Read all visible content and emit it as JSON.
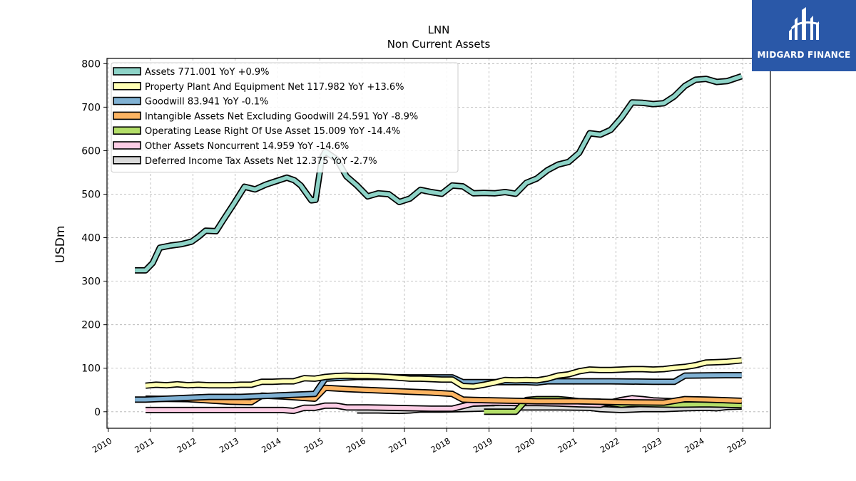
{
  "brand": {
    "name": "MIDGARD FINANCE",
    "color": "#2a58a8"
  },
  "chart_data": {
    "type": "line",
    "title": "LNN",
    "subtitle": "Non Current  Assets",
    "ylabel": "USDm",
    "xlabel": "",
    "xlim": [
      2009.97,
      2025.65
    ],
    "ylim": [
      -38,
      812
    ],
    "yticks": [
      0,
      100,
      200,
      300,
      400,
      500,
      600,
      700,
      800
    ],
    "xticks": [
      2010,
      2011,
      2012,
      2013,
      2014,
      2015,
      2016,
      2017,
      2018,
      2019,
      2020,
      2021,
      2022,
      2023,
      2024,
      2025
    ],
    "grid": true,
    "legend_position": "top-left",
    "series": [
      {
        "name": "Assets  771.001 YoY +0.9%",
        "color": "#8dd3c7",
        "points": [
          [
            2010.63,
            325
          ],
          [
            2010.88,
            325
          ],
          [
            2011.05,
            342
          ],
          [
            2011.22,
            377
          ],
          [
            2011.47,
            382
          ],
          [
            2011.72,
            385
          ],
          [
            2011.97,
            391
          ],
          [
            2012.13,
            402
          ],
          [
            2012.3,
            416
          ],
          [
            2012.55,
            415
          ],
          [
            2012.72,
            441
          ],
          [
            2012.97,
            478
          ],
          [
            2013.22,
            517
          ],
          [
            2013.47,
            511
          ],
          [
            2013.72,
            522
          ],
          [
            2013.97,
            530
          ],
          [
            2014.22,
            538
          ],
          [
            2014.4,
            532
          ],
          [
            2014.55,
            520
          ],
          [
            2014.8,
            486
          ],
          [
            2014.9,
            487
          ],
          [
            2015.05,
            583
          ],
          [
            2015.13,
            598
          ],
          [
            2015.4,
            580
          ],
          [
            2015.63,
            541
          ],
          [
            2015.88,
            520
          ],
          [
            2016.13,
            495
          ],
          [
            2016.38,
            502
          ],
          [
            2016.63,
            500
          ],
          [
            2016.88,
            482
          ],
          [
            2017.13,
            490
          ],
          [
            2017.38,
            510
          ],
          [
            2017.63,
            505
          ],
          [
            2017.88,
            501
          ],
          [
            2018.13,
            520
          ],
          [
            2018.38,
            518
          ],
          [
            2018.63,
            502
          ],
          [
            2018.88,
            503
          ],
          [
            2019.13,
            502
          ],
          [
            2019.38,
            505
          ],
          [
            2019.63,
            501
          ],
          [
            2019.88,
            526
          ],
          [
            2020.13,
            536
          ],
          [
            2020.38,
            555
          ],
          [
            2020.63,
            568
          ],
          [
            2020.88,
            574
          ],
          [
            2021.13,
            595
          ],
          [
            2021.38,
            640
          ],
          [
            2021.63,
            637
          ],
          [
            2021.88,
            648
          ],
          [
            2022.13,
            676
          ],
          [
            2022.38,
            711
          ],
          [
            2022.63,
            710
          ],
          [
            2022.88,
            707
          ],
          [
            2023.13,
            709
          ],
          [
            2023.38,
            725
          ],
          [
            2023.63,
            749
          ],
          [
            2023.88,
            763
          ],
          [
            2024.13,
            765
          ],
          [
            2024.38,
            758
          ],
          [
            2024.63,
            760
          ],
          [
            2024.97,
            771
          ]
        ]
      },
      {
        "name": "Property Plant And Equipment Net  117.982 YoY +13.6%",
        "color": "#ffffb3",
        "points": [
          [
            2010.88,
            60
          ],
          [
            2011.13,
            62
          ],
          [
            2011.38,
            61
          ],
          [
            2011.63,
            63
          ],
          [
            2011.88,
            61
          ],
          [
            2012.13,
            62
          ],
          [
            2012.38,
            61
          ],
          [
            2012.63,
            61
          ],
          [
            2012.88,
            61
          ],
          [
            2013.13,
            62
          ],
          [
            2013.38,
            62
          ],
          [
            2013.63,
            69
          ],
          [
            2013.88,
            69
          ],
          [
            2014.13,
            70
          ],
          [
            2014.38,
            70
          ],
          [
            2014.63,
            77
          ],
          [
            2014.88,
            76
          ],
          [
            2015.13,
            80
          ],
          [
            2015.38,
            82
          ],
          [
            2015.63,
            83
          ],
          [
            2015.88,
            82
          ],
          [
            2016.13,
            82
          ],
          [
            2016.38,
            81
          ],
          [
            2016.63,
            80
          ],
          [
            2016.88,
            78
          ],
          [
            2017.13,
            76
          ],
          [
            2017.38,
            76
          ],
          [
            2017.63,
            75
          ],
          [
            2017.88,
            74
          ],
          [
            2018.13,
            74
          ],
          [
            2018.38,
            59
          ],
          [
            2018.63,
            58
          ],
          [
            2018.88,
            62
          ],
          [
            2019.13,
            67
          ],
          [
            2019.38,
            73
          ],
          [
            2019.63,
            72
          ],
          [
            2019.88,
            73
          ],
          [
            2020.13,
            72
          ],
          [
            2020.38,
            76
          ],
          [
            2020.63,
            83
          ],
          [
            2020.88,
            86
          ],
          [
            2021.13,
            93
          ],
          [
            2021.38,
            97
          ],
          [
            2021.63,
            96
          ],
          [
            2021.88,
            96
          ],
          [
            2022.13,
            97
          ],
          [
            2022.38,
            98
          ],
          [
            2022.63,
            98
          ],
          [
            2022.88,
            97
          ],
          [
            2023.13,
            98
          ],
          [
            2023.38,
            101
          ],
          [
            2023.63,
            103
          ],
          [
            2023.88,
            107
          ],
          [
            2024.13,
            113
          ],
          [
            2024.38,
            114
          ],
          [
            2024.63,
            115
          ],
          [
            2024.97,
            118
          ]
        ]
      },
      {
        "name": "Goodwill  83.941 YoY -0.1%",
        "color": "#80b1d3",
        "points": [
          [
            2010.63,
            28
          ],
          [
            2010.88,
            28
          ],
          [
            2012.38,
            34
          ],
          [
            2013.13,
            34
          ],
          [
            2014.88,
            41
          ],
          [
            2015.13,
            76
          ],
          [
            2015.88,
            80
          ],
          [
            2016.38,
            80
          ],
          [
            2017.13,
            79
          ],
          [
            2017.88,
            79
          ],
          [
            2018.13,
            79
          ],
          [
            2018.38,
            68
          ],
          [
            2019.63,
            68
          ],
          [
            2019.88,
            68
          ],
          [
            2020.13,
            67
          ],
          [
            2020.38,
            70
          ],
          [
            2021.88,
            70
          ],
          [
            2022.88,
            69
          ],
          [
            2023.38,
            69
          ],
          [
            2023.63,
            83
          ],
          [
            2024.63,
            84
          ],
          [
            2024.97,
            84
          ]
        ]
      },
      {
        "name": "Intangible Assets Net Excluding Goodwill  24.591 YoY -8.9%",
        "color": "#fdb462",
        "points": [
          [
            2010.88,
            30
          ],
          [
            2011.88,
            29
          ],
          [
            2012.88,
            23
          ],
          [
            2013.38,
            22
          ],
          [
            2013.63,
            37
          ],
          [
            2014.13,
            35
          ],
          [
            2014.88,
            30
          ],
          [
            2015.13,
            55
          ],
          [
            2015.63,
            52
          ],
          [
            2016.13,
            50
          ],
          [
            2016.63,
            48
          ],
          [
            2017.13,
            46
          ],
          [
            2017.63,
            44
          ],
          [
            2018.13,
            41
          ],
          [
            2018.38,
            28
          ],
          [
            2018.63,
            27
          ],
          [
            2019.13,
            26
          ],
          [
            2019.63,
            25
          ],
          [
            2020.13,
            24
          ],
          [
            2021.13,
            24
          ],
          [
            2021.63,
            23
          ],
          [
            2022.13,
            22
          ],
          [
            2023.13,
            21
          ],
          [
            2023.63,
            29
          ],
          [
            2024.13,
            28
          ],
          [
            2024.97,
            25
          ]
        ]
      },
      {
        "name": "Operating Lease Right Of Use Asset  15.009 YoY -14.4%",
        "color": "#b3de69",
        "points": [
          [
            2018.88,
            0
          ],
          [
            2019.63,
            0
          ],
          [
            2019.88,
            27
          ],
          [
            2020.13,
            29
          ],
          [
            2020.63,
            29
          ],
          [
            2020.88,
            27
          ],
          [
            2021.13,
            24
          ],
          [
            2021.63,
            23
          ],
          [
            2022.13,
            16
          ],
          [
            2022.38,
            18
          ],
          [
            2022.88,
            17
          ],
          [
            2023.38,
            16
          ],
          [
            2024.13,
            17
          ],
          [
            2024.97,
            15
          ]
        ]
      },
      {
        "name": "Other Assets Noncurrent  14.959 YoY -14.6%",
        "color": "#fccde5",
        "points": [
          [
            2010.88,
            4
          ],
          [
            2011.88,
            4
          ],
          [
            2012.88,
            4
          ],
          [
            2013.38,
            4
          ],
          [
            2014.13,
            4
          ],
          [
            2014.38,
            2
          ],
          [
            2014.63,
            9
          ],
          [
            2014.88,
            9
          ],
          [
            2015.13,
            14
          ],
          [
            2015.38,
            14
          ],
          [
            2015.63,
            10
          ],
          [
            2016.13,
            10
          ],
          [
            2016.63,
            9
          ],
          [
            2017.13,
            8
          ],
          [
            2017.63,
            7
          ],
          [
            2018.13,
            7
          ],
          [
            2018.63,
            19
          ],
          [
            2019.13,
            21
          ],
          [
            2019.63,
            20
          ],
          [
            2020.13,
            20
          ],
          [
            2020.63,
            19
          ],
          [
            2021.13,
            17
          ],
          [
            2021.63,
            16
          ],
          [
            2022.13,
            27
          ],
          [
            2022.38,
            31
          ],
          [
            2022.63,
            29
          ],
          [
            2022.88,
            26
          ],
          [
            2023.13,
            25
          ],
          [
            2023.63,
            23
          ],
          [
            2024.13,
            21
          ],
          [
            2024.97,
            15
          ]
        ]
      },
      {
        "name": "Deferred Income Tax Assets Net  12.375 YoY -2.7%",
        "color": "#d9d9d9",
        "points": [
          [
            2015.88,
            3
          ],
          [
            2016.38,
            3
          ],
          [
            2016.88,
            2
          ],
          [
            2017.13,
            3
          ],
          [
            2017.38,
            5
          ],
          [
            2017.88,
            5
          ],
          [
            2018.38,
            6
          ],
          [
            2019.13,
            8
          ],
          [
            2019.38,
            10
          ],
          [
            2019.88,
            10
          ],
          [
            2020.63,
            10
          ],
          [
            2021.38,
            9
          ],
          [
            2021.63,
            6
          ],
          [
            2022.13,
            4
          ],
          [
            2022.63,
            6
          ],
          [
            2023.13,
            6
          ],
          [
            2023.63,
            8
          ],
          [
            2024.13,
            9
          ],
          [
            2024.38,
            8
          ],
          [
            2024.63,
            11
          ],
          [
            2024.97,
            12
          ]
        ]
      }
    ]
  }
}
